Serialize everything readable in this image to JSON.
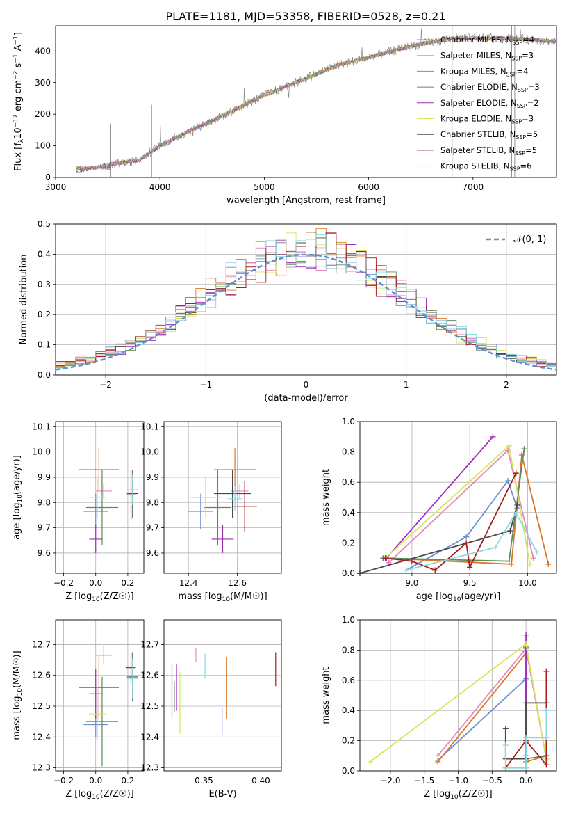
{
  "figure_title": "PLATE=1181, MJD=53358, FIBERID=0528, z=0.21",
  "colors": {
    "Chabrier MILES": "#6a8fd0",
    "Salpeter MILES": "#e687b8",
    "Kroupa MILES": "#d97726",
    "Chabrier ELODIE": "#5b8a5b",
    "Salpeter ELODIE": "#9b30b5",
    "Kroupa ELODIE": "#d6e65a",
    "Chabrier STELIB": "#4a4a4a",
    "Salpeter STELIB": "#a51d1d",
    "Kroupa STELIB": "#8ad8e0",
    "normal": "#5a8fd4"
  },
  "chart_data": [
    {
      "type": "line",
      "id": "spectrum",
      "xlabel": "wavelength [Angstrom, rest frame]",
      "ylabel": "Flux [f",
      "xlim": [
        3000,
        7800
      ],
      "ylim": [
        0,
        480
      ],
      "xticks": [
        "3000",
        "4000",
        "5000",
        "6000",
        "7000"
      ],
      "yticks": [
        "0",
        "100",
        "200",
        "300",
        "400"
      ],
      "x_knots": [
        3200,
        3500,
        3800,
        4000,
        4300,
        4600,
        5000,
        5300,
        5700,
        6000,
        6400,
        6800,
        7100,
        7400,
        7800
      ],
      "y_knots": [
        20,
        40,
        55,
        100,
        150,
        195,
        260,
        300,
        355,
        380,
        415,
        440,
        440,
        440,
        430
      ],
      "legend": [
        {
          "name": "Chabrier MILES",
          "nssp": "=4"
        },
        {
          "name": "Salpeter MILES",
          "nssp": "=3"
        },
        {
          "name": "Kroupa MILES",
          "nssp": "=4"
        },
        {
          "name": "Chabrier ELODIE",
          "nssp": "=3"
        },
        {
          "name": "Salpeter ELODIE",
          "nssp": "=2"
        },
        {
          "name": "Kroupa ELODIE",
          "nssp": "=3"
        },
        {
          "name": "Chabrier STELIB",
          "nssp": "=5"
        },
        {
          "name": "Salpeter STELIB",
          "nssp": "=5"
        },
        {
          "name": "Kroupa STELIB",
          "nssp": "=6"
        }
      ]
    },
    {
      "type": "histogram",
      "id": "residuals",
      "xlabel": "(data-model)/error",
      "ylabel": "Normed distribution",
      "xlim": [
        -2.5,
        2.5
      ],
      "ylim": [
        0,
        0.5
      ],
      "xticks": [
        "−2",
        "−1",
        "0",
        "1",
        "2"
      ],
      "yticks": [
        "0.0",
        "0.1",
        "0.2",
        "0.3",
        "0.4",
        "0.5"
      ],
      "bin_width": 0.1,
      "legend_label": "𝒩(0, 1)"
    },
    {
      "type": "scatter",
      "id": "age-vs-Z",
      "xlabel": "Z [log",
      "ylabel": "age  [log",
      "xlim": [
        -0.25,
        0.3
      ],
      "ylim": [
        9.52,
        10.12
      ],
      "xticks": [
        "−0.2",
        "0.0",
        "0.2"
      ],
      "yticks": [
        "9.6",
        "9.7",
        "9.8",
        "9.9",
        "10.0",
        "10.1"
      ],
      "points": [
        {
          "s": "Chabrier MILES",
          "x": 0.0,
          "y": 9.765,
          "xe": 0.15,
          "ye": 0.14
        },
        {
          "s": "Salpeter MILES",
          "x": 0.05,
          "y": 9.845,
          "xe": 0.1,
          "ye": 0.06
        },
        {
          "s": "Kroupa MILES",
          "x": 0.02,
          "y": 9.93,
          "xe": 0.25,
          "ye": 0.17
        },
        {
          "s": "Chabrier ELODIE",
          "x": 0.04,
          "y": 9.78,
          "xe": 0.2,
          "ye": 0.3
        },
        {
          "s": "Salpeter ELODIE",
          "x": 0.0,
          "y": 9.655,
          "xe": 0.08,
          "ye": 0.11
        },
        {
          "s": "Kroupa ELODIE",
          "x": 0.01,
          "y": 9.82,
          "xe": 0.1,
          "ye": 0.16
        },
        {
          "s": "Chabrier STELIB",
          "x": 0.23,
          "y": 9.835,
          "xe": 0.07,
          "ye": 0.19
        },
        {
          "s": "Salpeter STELIB",
          "x": 0.22,
          "y": 9.83,
          "xe": 0.06,
          "ye": 0.2
        },
        {
          "s": "Kroupa STELIB",
          "x": 0.23,
          "y": 9.85,
          "xe": 0.07,
          "ye": 0.12
        }
      ]
    },
    {
      "type": "scatter",
      "id": "age-vs-mass",
      "xlabel": "mass [log",
      "ylabel": "",
      "xlim": [
        12.3,
        12.78
      ],
      "ylim": [
        9.52,
        10.12
      ],
      "xticks": [
        "12.4",
        "12.6"
      ],
      "yticks": [
        "9.6",
        "9.7",
        "9.8",
        "9.9",
        "10.0",
        "10.1"
      ],
      "points": [
        {
          "s": "Chabrier MILES",
          "x": 12.45,
          "y": 9.765,
          "xe": 0.1,
          "ye": 0.14
        },
        {
          "s": "Salpeter MILES",
          "x": 12.61,
          "y": 9.845,
          "xe": 0.07,
          "ye": 0.06
        },
        {
          "s": "Kroupa MILES",
          "x": 12.59,
          "y": 9.93,
          "xe": 0.17,
          "ye": 0.17
        },
        {
          "s": "Chabrier ELODIE",
          "x": 12.52,
          "y": 9.78,
          "xe": 0.11,
          "ye": 0.3
        },
        {
          "s": "Salpeter ELODIE",
          "x": 12.54,
          "y": 9.655,
          "xe": 0.09,
          "ye": 0.11
        },
        {
          "s": "Kroupa ELODIE",
          "x": 12.47,
          "y": 9.82,
          "xe": 0.13,
          "ye": 0.16
        },
        {
          "s": "Chabrier STELIB",
          "x": 12.58,
          "y": 9.835,
          "xe": 0.15,
          "ye": 0.19
        },
        {
          "s": "Salpeter STELIB",
          "x": 12.63,
          "y": 9.785,
          "xe": 0.1,
          "ye": 0.2
        },
        {
          "s": "Kroupa STELIB",
          "x": 12.59,
          "y": 9.815,
          "xe": 0.06,
          "ye": 0.1
        }
      ]
    },
    {
      "type": "line",
      "id": "massweight-vs-age",
      "xlabel": "age  [log",
      "ylabel": "mass weight",
      "xlim": [
        8.55,
        10.25
      ],
      "ylim": [
        0,
        1.0
      ],
      "xticks": [
        "9.0",
        "9.5",
        "10.0"
      ],
      "yticks": [
        "0.0",
        "0.2",
        "0.4",
        "0.6",
        "0.8",
        "1.0"
      ],
      "series": [
        {
          "s": "Chabrier MILES",
          "x": [
            8.95,
            9.47,
            9.83,
            9.91
          ],
          "y": [
            0.02,
            0.24,
            0.61,
            0.43
          ]
        },
        {
          "s": "Salpeter MILES",
          "x": [
            8.8,
            9.83,
            10.05
          ],
          "y": [
            0.07,
            0.81,
            0.1
          ]
        },
        {
          "s": "Kroupa MILES",
          "x": [
            8.77,
            9.86,
            9.95,
            10.18
          ],
          "y": [
            0.1,
            0.06,
            0.78,
            0.06
          ]
        },
        {
          "s": "Chabrier ELODIE",
          "x": [
            8.75,
            9.84,
            9.97
          ],
          "y": [
            0.1,
            0.08,
            0.82
          ]
        },
        {
          "s": "Salpeter ELODIE",
          "x": [
            8.78,
            9.7
          ],
          "y": [
            0.1,
            0.9
          ]
        },
        {
          "s": "Kroupa ELODIE",
          "x": [
            8.77,
            9.84,
            10.02
          ],
          "y": [
            0.1,
            0.84,
            0.06
          ]
        },
        {
          "s": "Chabrier STELIB",
          "x": [
            8.55,
            9.85,
            9.91
          ],
          "y": [
            0.0,
            0.28,
            0.45
          ]
        },
        {
          "s": "Salpeter STELIB",
          "x": [
            8.77,
            9.0,
            9.2,
            9.47,
            9.5,
            9.9
          ],
          "y": [
            0.1,
            0.08,
            0.02,
            0.2,
            0.04,
            0.66
          ]
        },
        {
          "s": "Kroupa STELIB",
          "x": [
            8.95,
            9.72,
            9.9,
            10.08
          ],
          "y": [
            0.02,
            0.17,
            0.4,
            0.14
          ]
        }
      ]
    },
    {
      "type": "scatter",
      "id": "mass-vs-Z",
      "xlabel": "Z [log",
      "ylabel": "mass [log",
      "xlim": [
        -0.25,
        0.3
      ],
      "ylim": [
        12.29,
        12.78
      ],
      "xticks": [
        "−0.2",
        "0.0",
        "0.2"
      ],
      "yticks": [
        "12.3",
        "12.4",
        "12.5",
        "12.6",
        "12.7"
      ],
      "points": [
        {
          "s": "Chabrier MILES",
          "x": 0.0,
          "y": 12.44,
          "xe": 0.15,
          "ye": 0.08
        },
        {
          "s": "Salpeter MILES",
          "x": 0.05,
          "y": 12.665,
          "xe": 0.1,
          "ye": 0.06
        },
        {
          "s": "Kroupa MILES",
          "x": 0.02,
          "y": 12.56,
          "xe": 0.25,
          "ye": 0.2
        },
        {
          "s": "Chabrier ELODIE",
          "x": 0.04,
          "y": 12.45,
          "xe": 0.2,
          "ye": 0.29
        },
        {
          "s": "Salpeter ELODIE",
          "x": 0.0,
          "y": 12.54,
          "xe": 0.08,
          "ye": 0.16
        },
        {
          "s": "Kroupa ELODIE",
          "x": 0.01,
          "y": 12.475,
          "xe": 0.1,
          "ye": 0.17
        },
        {
          "s": "Chabrier STELIB",
          "x": 0.23,
          "y": 12.595,
          "xe": 0.07,
          "ye": 0.16
        },
        {
          "s": "Salpeter STELIB",
          "x": 0.22,
          "y": 12.625,
          "xe": 0.06,
          "ye": 0.1
        },
        {
          "s": "Kroupa STELIB",
          "x": 0.23,
          "y": 12.59,
          "xe": 0.07,
          "ye": 0.13
        }
      ]
    },
    {
      "type": "scatter",
      "id": "mass-vs-EBV",
      "xlabel": "E(B-V)",
      "ylabel": "",
      "xlim": [
        0.315,
        0.418
      ],
      "ylim": [
        12.29,
        12.78
      ],
      "xticks": [
        "0.35",
        "0.40"
      ],
      "yticks": [
        "12.3",
        "12.4",
        "12.5",
        "12.6",
        "12.7"
      ],
      "points": [
        {
          "s": "Chabrier MILES",
          "x": 0.366,
          "y": 12.45,
          "xe": 0,
          "ye": 0.09
        },
        {
          "s": "Salpeter MILES",
          "x": 0.343,
          "y": 12.665,
          "xe": 0,
          "ye": 0.045
        },
        {
          "s": "Kroupa MILES",
          "x": 0.37,
          "y": 12.56,
          "xe": 0,
          "ye": 0.2
        },
        {
          "s": "Chabrier ELODIE",
          "x": 0.322,
          "y": 12.55,
          "xe": 0,
          "ye": 0.18
        },
        {
          "s": "Salpeter ELODIE",
          "x": 0.326,
          "y": 12.56,
          "xe": 0,
          "ye": 0.15
        },
        {
          "s": "Kroupa ELODIE",
          "x": 0.329,
          "y": 12.51,
          "xe": 0,
          "ye": 0.2
        },
        {
          "s": "Chabrier STELIB",
          "x": 0.324,
          "y": 12.53,
          "xe": 0,
          "ye": 0.1
        },
        {
          "s": "Salpeter STELIB",
          "x": 0.413,
          "y": 12.62,
          "xe": 0,
          "ye": 0.11
        },
        {
          "s": "Kroupa STELIB",
          "x": 0.351,
          "y": 12.63,
          "xe": 0,
          "ye": 0.08
        }
      ]
    },
    {
      "type": "line",
      "id": "massweight-vs-Z",
      "xlabel": "Z [log",
      "ylabel": "mass weight",
      "xlim": [
        -2.45,
        0.45
      ],
      "ylim": [
        0,
        1.0
      ],
      "xticks": [
        "−2.0",
        "−1.5",
        "−1.0",
        "−0.5",
        "0.0"
      ],
      "yticks": [
        "0.0",
        "0.2",
        "0.4",
        "0.6",
        "0.8",
        "1.0"
      ],
      "series": [
        {
          "s": "Chabrier MILES",
          "x": [
            -1.3,
            0.0,
            0.0
          ],
          "y": [
            0.07,
            0.61,
            0.02
          ]
        },
        {
          "s": "Salpeter MILES",
          "x": [
            -1.3,
            0.0,
            0.3
          ],
          "y": [
            0.1,
            0.81,
            0.08
          ]
        },
        {
          "s": "Kroupa MILES",
          "x": [
            -1.3,
            0.0,
            0.0,
            0.3
          ],
          "y": [
            0.06,
            0.78,
            0.06,
            0.1
          ]
        },
        {
          "s": "Chabrier ELODIE",
          "x": [
            0.0,
            0.0,
            0.3
          ],
          "y": [
            0.82,
            0.08,
            0.1
          ]
        },
        {
          "s": "Salpeter ELODIE",
          "x": [
            0.0,
            0.0
          ],
          "y": [
            0.9,
            0.1
          ]
        },
        {
          "s": "Kroupa ELODIE",
          "x": [
            -2.3,
            0.0,
            0.3
          ],
          "y": [
            0.06,
            0.84,
            0.08
          ]
        },
        {
          "s": "Chabrier STELIB",
          "x": [
            -0.3,
            -0.3,
            0.0,
            0.0,
            0.3,
            0.3
          ],
          "y": [
            0.28,
            0.08,
            0.08,
            0.45,
            0.45,
            0.1
          ]
        },
        {
          "s": "Salpeter STELIB",
          "x": [
            -0.3,
            0.0,
            0.3,
            0.3,
            0.3
          ],
          "y": [
            0.02,
            0.2,
            0.04,
            0.66,
            0.1
          ]
        },
        {
          "s": "Kroupa STELIB",
          "x": [
            -0.3,
            -0.3,
            0.0,
            0.0,
            0.3,
            0.3
          ],
          "y": [
            0.17,
            0.02,
            0.02,
            0.22,
            0.22,
            0.4
          ]
        }
      ]
    }
  ]
}
